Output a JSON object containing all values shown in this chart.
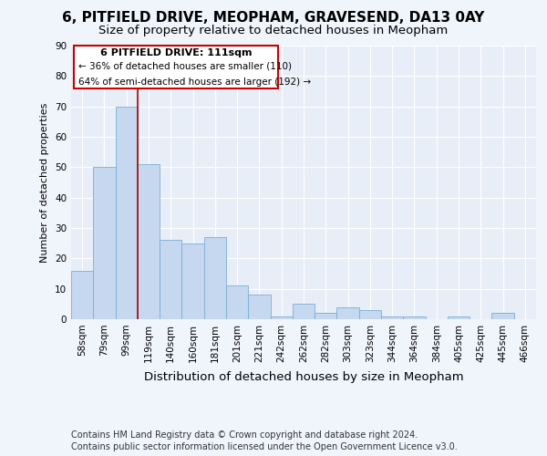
{
  "title_line1": "6, PITFIELD DRIVE, MEOPHAM, GRAVESEND, DA13 0AY",
  "title_line2": "Size of property relative to detached houses in Meopham",
  "xlabel": "Distribution of detached houses by size in Meopham",
  "ylabel": "Number of detached properties",
  "categories": [
    "58sqm",
    "79sqm",
    "99sqm",
    "119sqm",
    "140sqm",
    "160sqm",
    "181sqm",
    "201sqm",
    "221sqm",
    "242sqm",
    "262sqm",
    "282sqm",
    "303sqm",
    "323sqm",
    "344sqm",
    "364sqm",
    "384sqm",
    "405sqm",
    "425sqm",
    "445sqm",
    "466sqm"
  ],
  "bar_heights": [
    16,
    50,
    70,
    51,
    26,
    25,
    27,
    11,
    8,
    1,
    5,
    2,
    4,
    3,
    1,
    1,
    0,
    1,
    0,
    2,
    0
  ],
  "bar_color": "#c5d8ef",
  "bar_edge_color": "#7aafd4",
  "vline_x_index": 3,
  "vline_color": "#aa0000",
  "annotation_title": "6 PITFIELD DRIVE: 111sqm",
  "annotation_line1": "← 36% of detached houses are smaller (110)",
  "annotation_line2": "64% of semi-detached houses are larger (192) →",
  "annotation_box_color": "#ffffff",
  "annotation_box_edge": "#cc0000",
  "ylim": [
    0,
    90
  ],
  "yticks": [
    0,
    10,
    20,
    30,
    40,
    50,
    60,
    70,
    80,
    90
  ],
  "footer_line1": "Contains HM Land Registry data © Crown copyright and database right 2024.",
  "footer_line2": "Contains public sector information licensed under the Open Government Licence v3.0.",
  "bg_color": "#f0f4fb",
  "plot_bg_color": "#e8eef8",
  "grid_color": "#ffffff",
  "title_fontsize": 11,
  "subtitle_fontsize": 9.5,
  "xlabel_fontsize": 9.5,
  "ylabel_fontsize": 8,
  "tick_fontsize": 7.5,
  "footer_fontsize": 7,
  "ann_title_fontsize": 8,
  "ann_text_fontsize": 7.5
}
